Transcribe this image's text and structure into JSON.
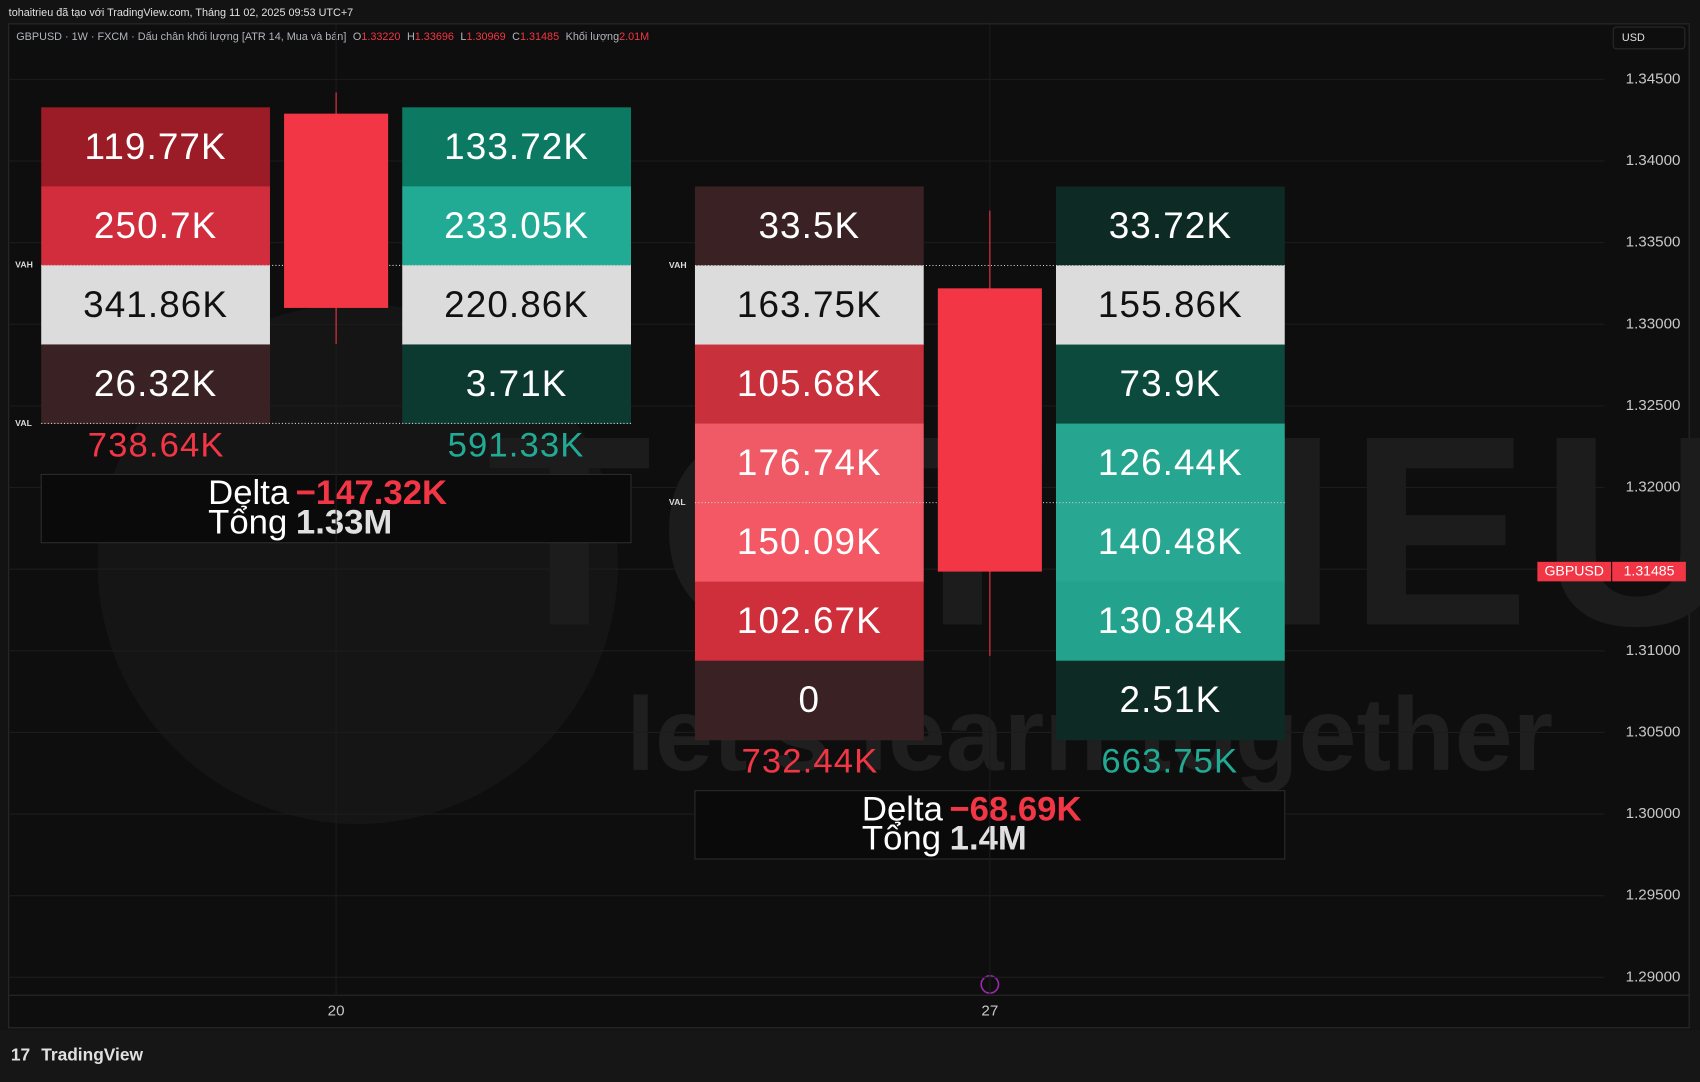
{
  "header": {
    "text": "tohaitrieu đã tạo với TradingView.com, Tháng 11 02, 2025 09:53 UTC+7"
  },
  "legend": {
    "title": "GBPUSD · 1W · FXCM · Dấu chân khối lượng [ATR 14, Mua và bán]",
    "items": [
      {
        "label": "O",
        "value": "1.33220"
      },
      {
        "label": "H",
        "value": "1.33696"
      },
      {
        "label": "L",
        "value": "1.30969"
      },
      {
        "label": "C",
        "value": "1.31485"
      },
      {
        "label": "Khối lượng",
        "value": "2.01M"
      }
    ]
  },
  "currency": "USD",
  "price_axis": {
    "ylim": [
      1.2889,
      1.3484
    ],
    "yticks": [
      {
        "value": 1.345,
        "label": "1.34500"
      },
      {
        "value": 1.34,
        "label": "1.34000"
      },
      {
        "value": 1.335,
        "label": "1.33500"
      },
      {
        "value": 1.33,
        "label": "1.33000"
      },
      {
        "value": 1.325,
        "label": "1.32500"
      },
      {
        "value": 1.32,
        "label": "1.32000"
      },
      {
        "value": 1.315,
        "label": "1.31500"
      },
      {
        "value": 1.31,
        "label": "1.31000"
      },
      {
        "value": 1.305,
        "label": "1.30500"
      },
      {
        "value": 1.3,
        "label": "1.30000"
      },
      {
        "value": 1.295,
        "label": "1.29500"
      },
      {
        "value": 1.29,
        "label": "1.29000"
      }
    ],
    "price_tag": {
      "symbol": "GBPUSD",
      "value": "1.31485"
    }
  },
  "candles": [
    {
      "x_label": "20",
      "open": 1.3429,
      "high": 1.3442,
      "low": 1.3288,
      "close": 1.331
    },
    {
      "x_label": "27",
      "open": 1.3322,
      "high": 1.33696,
      "low": 1.30969,
      "close": 1.31485
    }
  ],
  "footprints": [
    {
      "rows": [
        {
          "sell": "119.77K",
          "buy": "133.72K"
        },
        {
          "sell": "250.7K",
          "buy": "233.05K"
        },
        {
          "sell": "341.86K",
          "buy": "220.86K"
        },
        {
          "sell": "26.32K",
          "buy": "3.71K"
        }
      ],
      "sell_total": "738.64K",
      "buy_total": "591.33K",
      "delta_label": "Delta",
      "delta": "−147.32K",
      "total_label": "Tổng",
      "total": "1.33M",
      "vah": "VAH",
      "val": "VAL"
    },
    {
      "rows": [
        {
          "sell": "33.5K",
          "buy": "33.72K"
        },
        {
          "sell": "163.75K",
          "buy": "155.86K"
        },
        {
          "sell": "105.68K",
          "buy": "73.9K"
        },
        {
          "sell": "176.74K",
          "buy": "126.44K"
        },
        {
          "sell": "150.09K",
          "buy": "140.48K"
        },
        {
          "sell": "102.67K",
          "buy": "130.84K"
        },
        {
          "sell": "0",
          "buy": "2.51K"
        }
      ],
      "sell_total": "732.44K",
      "buy_total": "663.75K",
      "delta_label": "Delta",
      "delta": "−68.69K",
      "total_label": "Tổng",
      "total": "1.4M",
      "vah": "VAH",
      "val": "VAL"
    }
  ],
  "watermark": {
    "brand": "TOTRIEU",
    "slogan": "let's learn together"
  },
  "footer": {
    "logo": "TradingView"
  }
}
